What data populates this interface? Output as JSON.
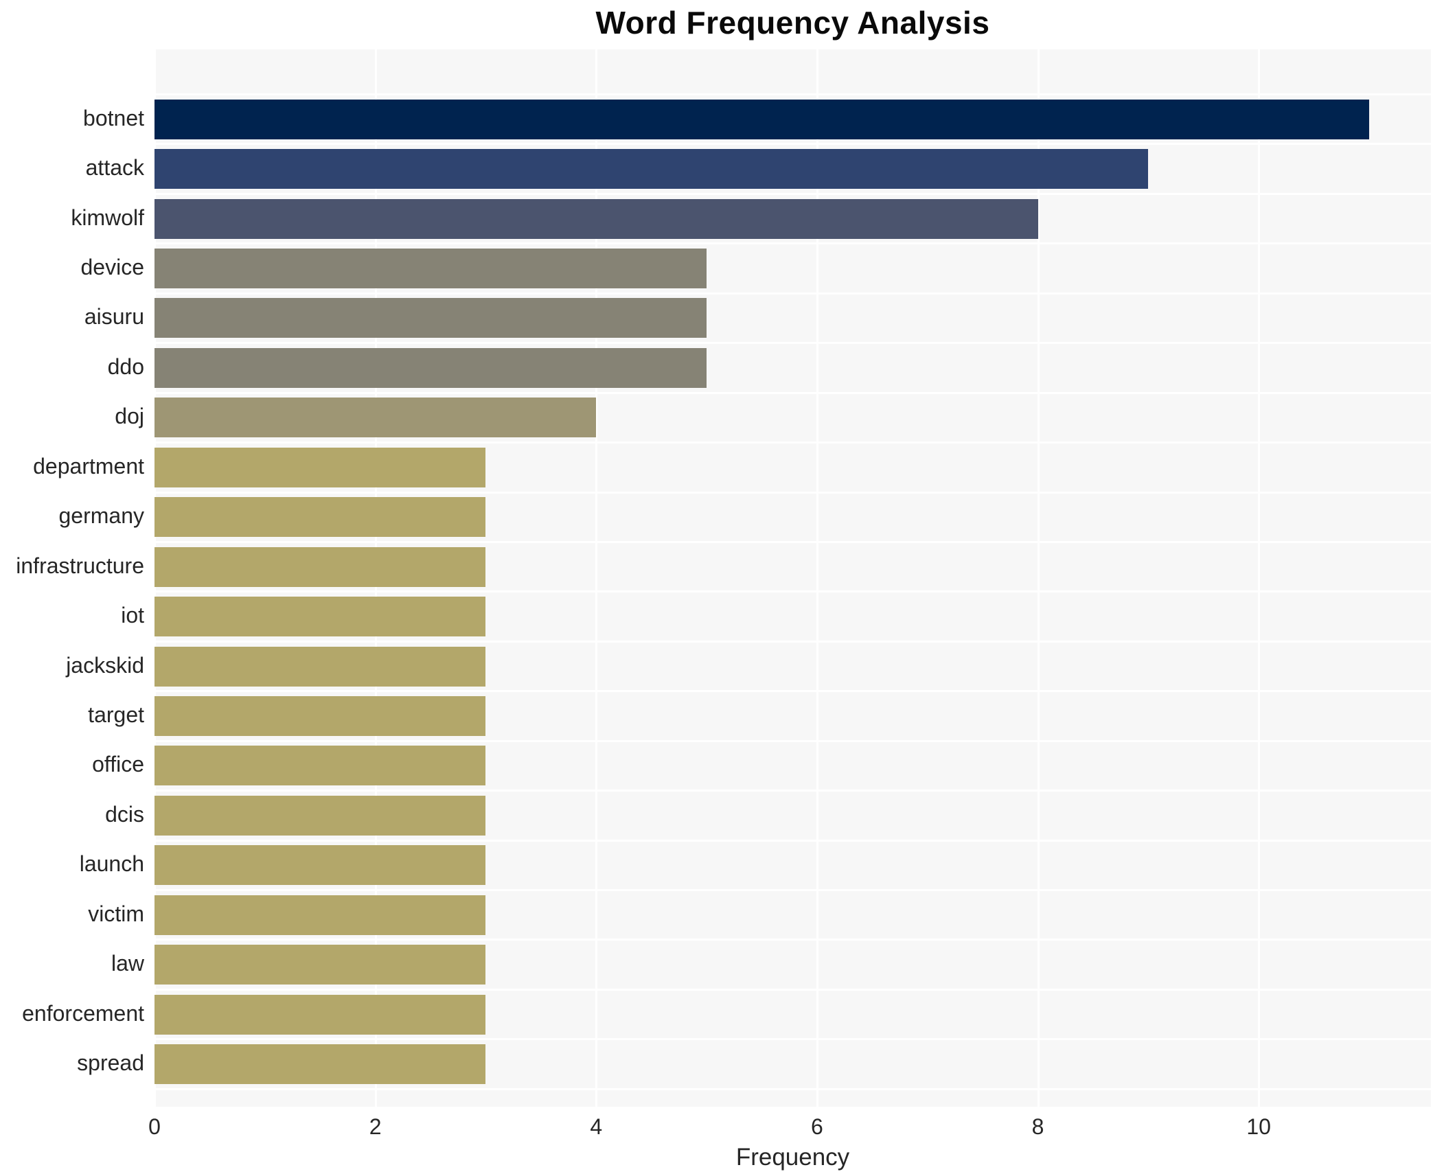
{
  "chart_data": {
    "type": "bar",
    "orientation": "horizontal",
    "title": "Word Frequency Analysis",
    "xlabel": "Frequency",
    "ylabel": "",
    "categories": [
      "botnet",
      "attack",
      "kimwolf",
      "device",
      "aisuru",
      "ddo",
      "doj",
      "department",
      "germany",
      "infrastructure",
      "iot",
      "jackskid",
      "target",
      "office",
      "dcis",
      "launch",
      "victim",
      "law",
      "enforcement",
      "spread"
    ],
    "values": [
      11,
      9,
      8,
      5,
      5,
      5,
      4,
      3,
      3,
      3,
      3,
      3,
      3,
      3,
      3,
      3,
      3,
      3,
      3,
      3
    ],
    "bar_colors": [
      "#00234f",
      "#2f4470",
      "#4b546e",
      "#868375",
      "#868375",
      "#868375",
      "#9e9674",
      "#b3a76a",
      "#b3a76a",
      "#b3a76a",
      "#b3a76a",
      "#b3a76a",
      "#b3a76a",
      "#b3a76a",
      "#b3a76a",
      "#b3a76a",
      "#b3a76a",
      "#b3a76a",
      "#b3a76a",
      "#b3a76a"
    ],
    "xticks": [
      0,
      2,
      4,
      6,
      8,
      10
    ],
    "xlim": [
      0,
      11.56
    ],
    "grid": true,
    "legend": false,
    "colors": {
      "plot_background": "#f7f7f7",
      "gridline": "#ffffff",
      "text": "#262626",
      "title_text": "#0a0a0a",
      "page_background": "#ffffff"
    }
  }
}
